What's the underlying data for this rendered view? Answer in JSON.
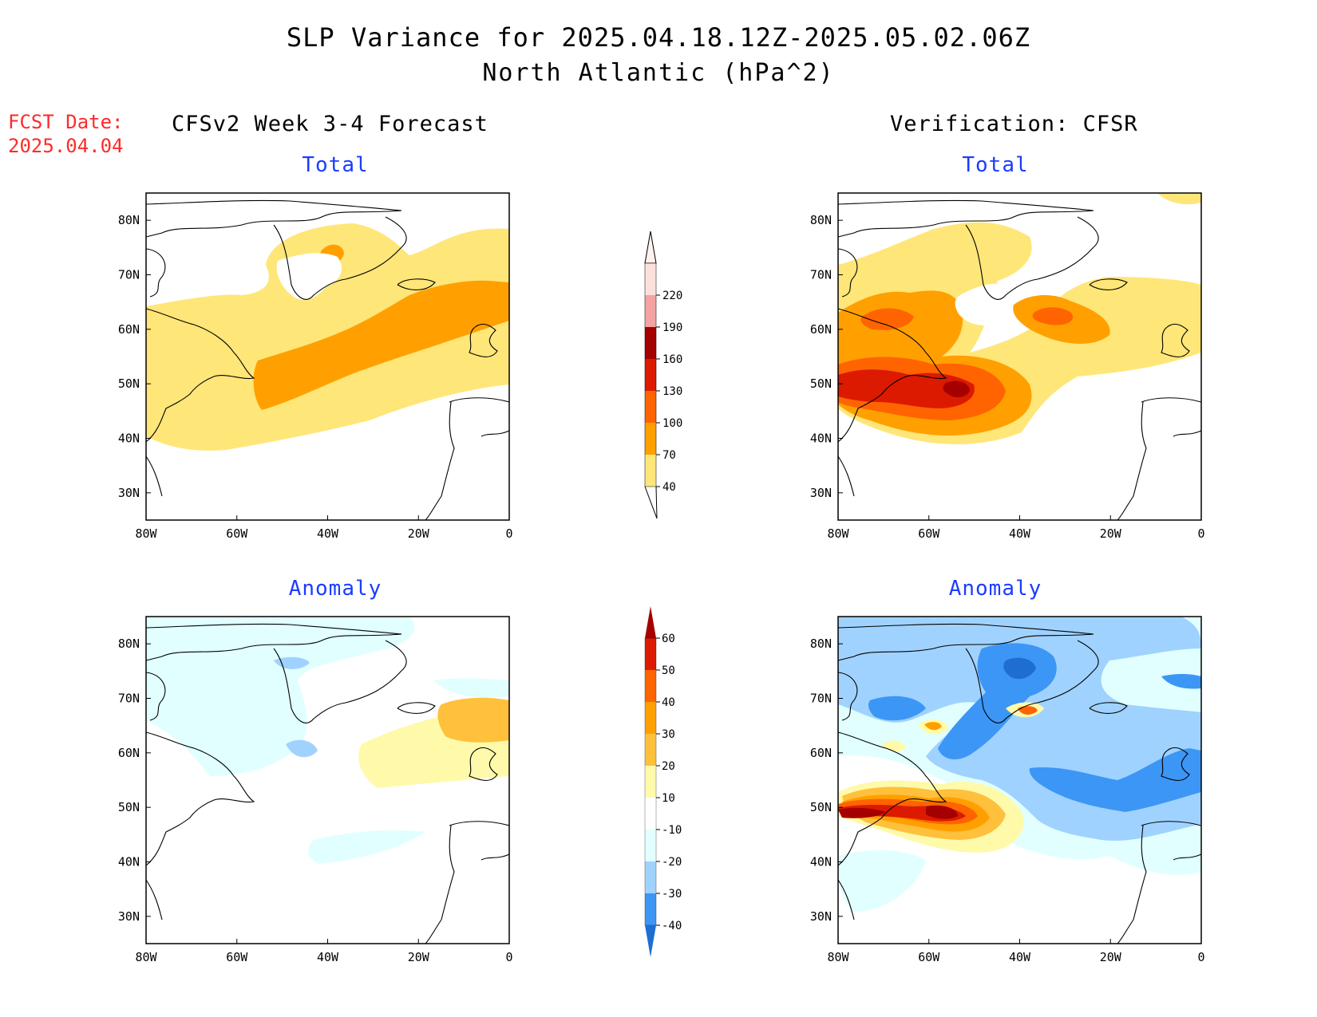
{
  "title": {
    "line1": "SLP Variance for 2025.04.18.12Z-2025.05.02.06Z",
    "line2": "North Atlantic (hPa^2)"
  },
  "forecast_date": {
    "label": "FCST Date:",
    "value": "2025.04.04"
  },
  "columns": {
    "left": "CFSv2 Week 3-4 Forecast",
    "right": "Verification: CFSR"
  },
  "panels": [
    {
      "id": "forecast-total",
      "title": "Total"
    },
    {
      "id": "verification-total",
      "title": "Total"
    },
    {
      "id": "forecast-anomaly",
      "title": "Anomaly"
    },
    {
      "id": "verification-anomaly",
      "title": "Anomaly"
    }
  ],
  "axes": {
    "lon_ticks": [
      "80W",
      "60W",
      "40W",
      "20W",
      "0"
    ],
    "lat_ticks": [
      "80N",
      "70N",
      "60N",
      "50N",
      "40N",
      "30N"
    ],
    "lon_range": [
      -80,
      0
    ],
    "lat_range": [
      25,
      85
    ]
  },
  "colorbars": {
    "total": {
      "labels": [
        "220",
        "190",
        "160",
        "130",
        "100",
        "70",
        "40"
      ],
      "colors": [
        "#fde0dc",
        "#f4a2a2",
        "#a50000",
        "#dc1a00",
        "#ff6400",
        "#ffa000",
        "#ffe678"
      ]
    },
    "anomaly": {
      "labels": [
        "60",
        "50",
        "40",
        "30",
        "20",
        "10",
        "-10",
        "-20",
        "-30",
        "-40"
      ],
      "colors_top_to_bottom": [
        "#a50000",
        "#dc1a00",
        "#ff6400",
        "#ffa000",
        "#ffc03c",
        "#fffaaa",
        "#ffffff",
        "#e1ffff",
        "#a0d2ff",
        "#3c96f5",
        "#1e6ed2"
      ]
    }
  }
}
